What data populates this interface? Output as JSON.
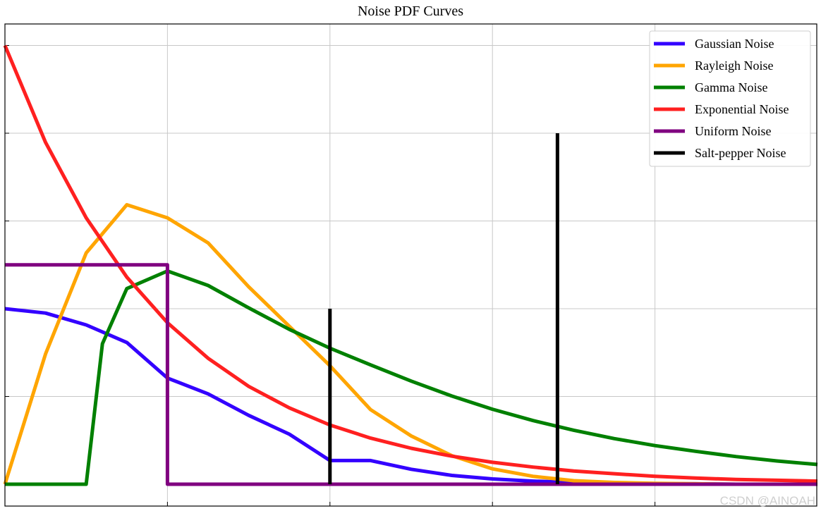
{
  "chart_data": {
    "type": "line",
    "title": "Noise PDF Curves",
    "xlabel": "",
    "ylabel": "",
    "xlim": [
      0,
      1
    ],
    "ylim": [
      0,
      1
    ],
    "grid": true,
    "legend_position": "top-right",
    "x_ticks": [
      0,
      0.2,
      0.4,
      0.6,
      0.8,
      1.0
    ],
    "y_ticks": [
      0,
      0.2,
      0.4,
      0.6,
      0.8,
      1.0
    ],
    "series": [
      {
        "name": "Gaussian Noise",
        "color": "#3300ff",
        "kind": "curve",
        "x": [
          0,
          0.05,
          0.1,
          0.15,
          0.2,
          0.25,
          0.3,
          0.35,
          0.4,
          0.45,
          0.5,
          0.55,
          0.6,
          0.65,
          0.7,
          0.75,
          0.8,
          0.85,
          0.9,
          0.95,
          1.0
        ],
        "y": [
          0.4,
          0.39,
          0.363,
          0.323,
          0.242,
          0.206,
          0.157,
          0.114,
          0.054,
          0.054,
          0.034,
          0.02,
          0.012,
          0.007,
          0.004,
          0.002,
          0.001,
          0.001,
          0.0,
          0.0,
          0.0
        ]
      },
      {
        "name": "Rayleigh Noise",
        "color": "#ffa500",
        "kind": "curve",
        "x": [
          0,
          0.05,
          0.1,
          0.15,
          0.2,
          0.25,
          0.3,
          0.35,
          0.4,
          0.45,
          0.5,
          0.55,
          0.6,
          0.65,
          0.7,
          0.75,
          0.8,
          0.85,
          0.9,
          0.95,
          1.0
        ],
        "y": [
          0,
          0.297,
          0.527,
          0.637,
          0.607,
          0.55,
          0.45,
          0.36,
          0.27,
          0.17,
          0.11,
          0.065,
          0.035,
          0.018,
          0.008,
          0.004,
          0.002,
          0.001,
          0.0,
          0.0,
          0.0
        ]
      },
      {
        "name": "Gamma Noise",
        "color": "#008000",
        "kind": "curve",
        "x": [
          0,
          0.1,
          0.1,
          0.12,
          0.15,
          0.2,
          0.25,
          0.3,
          0.35,
          0.4,
          0.45,
          0.5,
          0.55,
          0.6,
          0.65,
          0.7,
          0.75,
          0.8,
          0.85,
          0.9,
          0.95,
          1.0
        ],
        "y": [
          0,
          0,
          0,
          0.32,
          0.446,
          0.486,
          0.453,
          0.402,
          0.353,
          0.31,
          0.272,
          0.235,
          0.201,
          0.171,
          0.145,
          0.123,
          0.104,
          0.088,
          0.075,
          0.063,
          0.053,
          0.045
        ]
      },
      {
        "name": "Exponential Noise",
        "color": "#ff2020",
        "kind": "curve",
        "x": [
          0,
          0.05,
          0.1,
          0.15,
          0.2,
          0.25,
          0.3,
          0.35,
          0.4,
          0.45,
          0.5,
          0.55,
          0.6,
          0.65,
          0.7,
          0.75,
          0.8,
          0.85,
          0.9,
          0.95,
          1.0
        ],
        "y": [
          1.0,
          0.779,
          0.607,
          0.472,
          0.368,
          0.287,
          0.223,
          0.174,
          0.135,
          0.105,
          0.082,
          0.064,
          0.05,
          0.039,
          0.03,
          0.024,
          0.018,
          0.014,
          0.011,
          0.009,
          0.007
        ]
      },
      {
        "name": "Uniform Noise",
        "color": "#800080",
        "kind": "step",
        "x": [
          0,
          0.2,
          0.2,
          1.0
        ],
        "y": [
          0.5,
          0.5,
          0,
          0
        ]
      },
      {
        "name": "Salt-pepper Noise",
        "color": "#000000",
        "kind": "stem",
        "x": [
          0.4,
          0.68
        ],
        "y": [
          0.4,
          0.8
        ]
      }
    ]
  },
  "watermark": "CSDN @AINOAH"
}
